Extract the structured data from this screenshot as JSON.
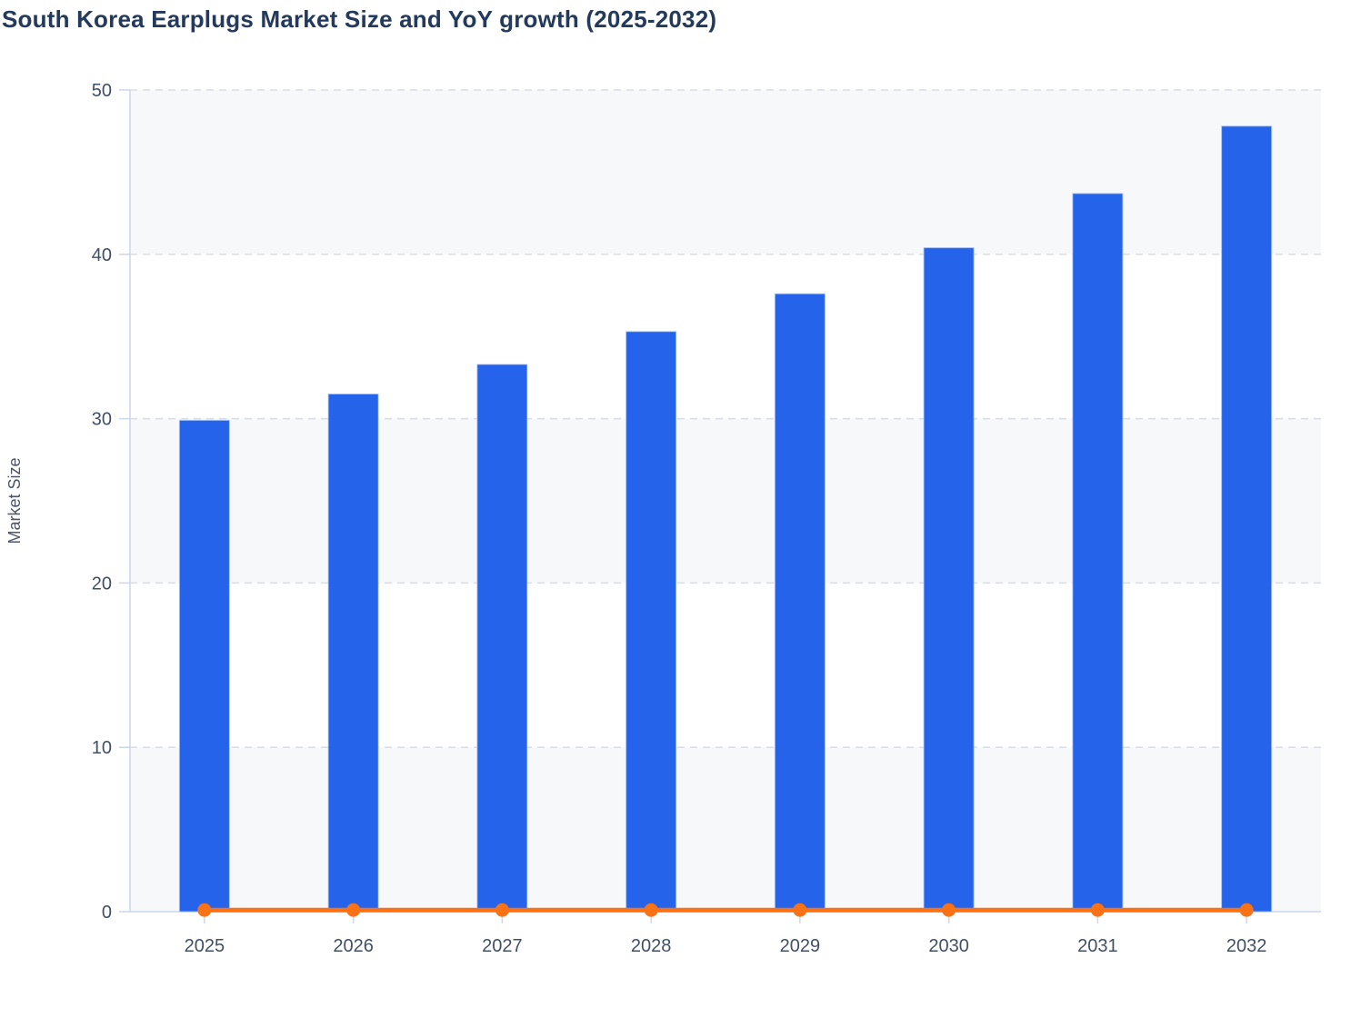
{
  "title": "South Korea Earplugs Market Size and YoY growth (2025-2032)",
  "colors": {
    "title": "#233a5c",
    "bar": "#2563eb",
    "bar_edge": "rgba(165,195,250,0.8)",
    "line": "#f97316",
    "plot_band": "#f6f8fa",
    "gridline": "#d9dce2",
    "axis": "#ccd6ec",
    "tick_label": "#414f66",
    "axis_title": "#4a5568"
  },
  "chart_data": {
    "type": "bar",
    "title": "South Korea Earplugs Market Size and YoY growth (2025-2032)",
    "categories": [
      "2025",
      "2026",
      "2027",
      "2028",
      "2029",
      "2030",
      "2031",
      "2032"
    ],
    "series": [
      {
        "name": "Market Size",
        "type": "bar",
        "color": "#2563eb",
        "values": [
          29.9,
          31.5,
          33.3,
          35.3,
          37.6,
          40.4,
          43.7,
          47.8
        ]
      },
      {
        "name": "YoY growth",
        "type": "line",
        "color": "#f97316",
        "values": [
          0.1,
          0.1,
          0.1,
          0.1,
          0.1,
          0.1,
          0.1,
          0.1
        ]
      }
    ],
    "xlabel": "",
    "ylabel": "Market Size",
    "ylim": [
      0,
      50
    ],
    "yticks": [
      0,
      10,
      20,
      30,
      40,
      50
    ],
    "grid": "dashed horizontal gridlines",
    "plot_bands": "alternating light bands every 10 units",
    "legend_position": "none"
  }
}
